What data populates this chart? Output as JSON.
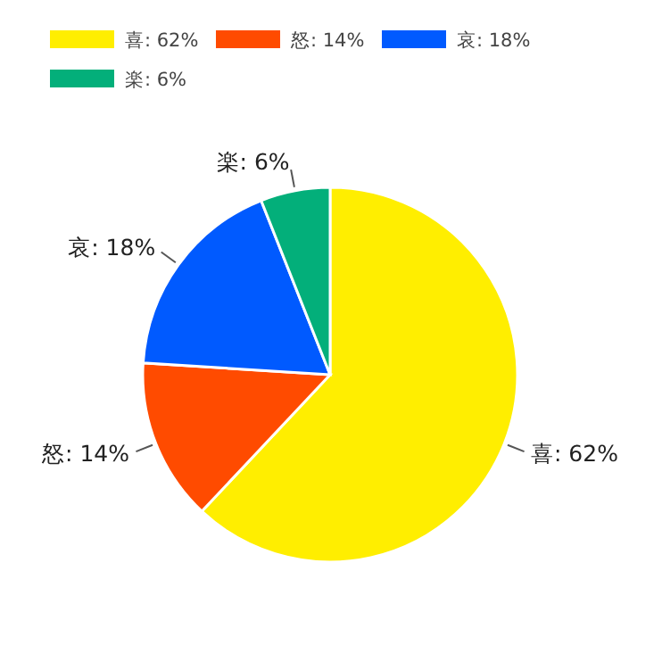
{
  "chart_data": {
    "type": "pie",
    "categories": [
      "喜: 62%",
      "怒: 14%",
      "哀: 18%",
      "楽: 6%"
    ],
    "values": [
      62,
      14,
      18,
      6
    ],
    "colors": [
      "#ffee00",
      "#ff4b00",
      "#005aff",
      "#03af7a"
    ],
    "legend": "top"
  }
}
